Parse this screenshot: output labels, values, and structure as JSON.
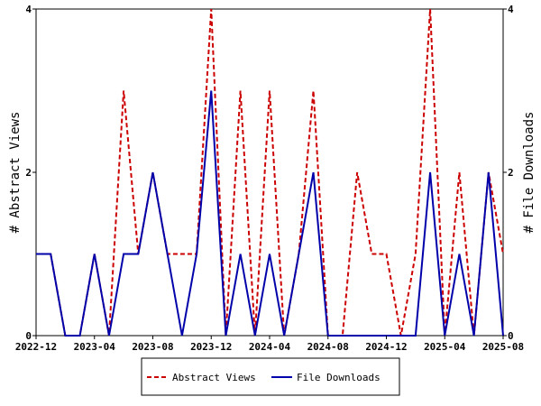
{
  "chart_data": {
    "type": "line",
    "x": [
      "2022-12",
      "2023-01",
      "2023-02",
      "2023-03",
      "2023-04",
      "2023-05",
      "2023-06",
      "2023-07",
      "2023-08",
      "2023-09",
      "2023-10",
      "2023-11",
      "2023-12",
      "2024-01",
      "2024-02",
      "2024-03",
      "2024-04",
      "2024-05",
      "2024-06",
      "2024-07",
      "2024-08",
      "2024-09",
      "2024-10",
      "2024-11",
      "2024-12",
      "2025-01",
      "2025-02",
      "2025-03",
      "2025-04",
      "2025-05",
      "2025-06",
      "2025-07",
      "2025-08"
    ],
    "x_ticks": [
      "2022-12",
      "2023-04",
      "2023-08",
      "2023-12",
      "2024-04",
      "2024-08",
      "2024-12",
      "2025-04",
      "2025-08"
    ],
    "series": [
      {
        "name": "Abstract Views",
        "color": "#cc0000",
        "style": "dashed",
        "axis": "left",
        "values": [
          1,
          1,
          0,
          0,
          1,
          0,
          3,
          1,
          2,
          1,
          1,
          1,
          4,
          0,
          3,
          0,
          3,
          0,
          1,
          3,
          0,
          0,
          2,
          1,
          1,
          0,
          1,
          4,
          0,
          2,
          0,
          2,
          1
        ]
      },
      {
        "name": "File Downloads",
        "color": "#0000aa",
        "style": "solid",
        "axis": "right",
        "values": [
          1,
          1,
          0,
          0,
          1,
          0,
          1,
          1,
          2,
          1,
          0,
          1,
          3,
          0,
          1,
          0,
          1,
          0,
          1,
          2,
          0,
          0,
          0,
          0,
          0,
          0,
          0,
          2,
          0,
          1,
          0,
          2,
          0
        ]
      }
    ],
    "ylabel_left": "# Abstract Views",
    "ylabel_right": "# File Downloads",
    "ylim_left": [
      0,
      4
    ],
    "ylim_right": [
      0,
      4
    ],
    "yticks_left": [
      0,
      2,
      4
    ],
    "yticks_right": [
      0,
      2,
      4
    ],
    "grid": false,
    "legend_position": "bottom-center"
  }
}
